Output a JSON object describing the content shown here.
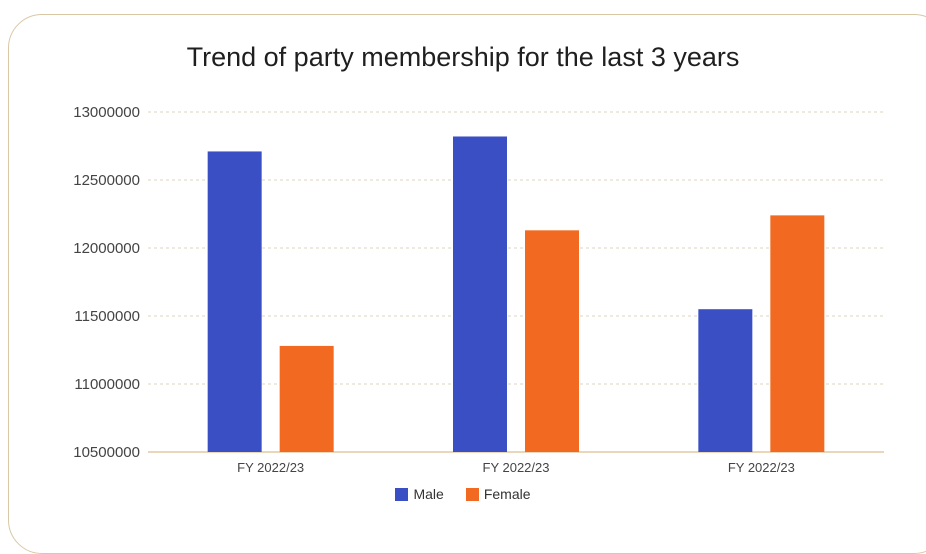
{
  "chart_data": {
    "type": "bar",
    "title": "Trend of party membership for the last 3 years",
    "xlabel": "",
    "ylabel": "",
    "categories": [
      "FY 2022/23",
      "FY 2022/23",
      "FY 2022/23"
    ],
    "series": [
      {
        "name": "Male",
        "color": "#3b4fc4",
        "values": [
          12710000,
          12820000,
          11550000
        ]
      },
      {
        "name": "Female",
        "color": "#f26a21",
        "values": [
          11280000,
          12130000,
          12240000
        ]
      }
    ],
    "ylim": [
      10500000,
      13000000
    ],
    "yticks": [
      "13000000",
      "12500000",
      "12000000",
      "11500000",
      "11000000",
      "10500000"
    ],
    "grid": true,
    "legend_position": "bottom"
  }
}
